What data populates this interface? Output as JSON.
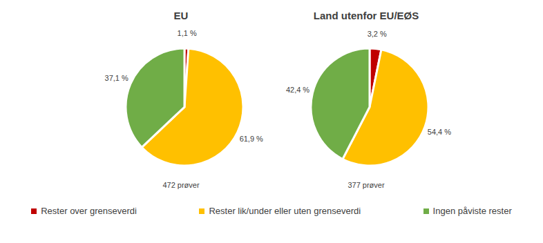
{
  "chart_data": [
    {
      "type": "pie",
      "title": "EU",
      "categories": [
        "Rester over grenseverdi",
        "Rester lik/under eller uten grenseverdi",
        "Ingen påviste rester"
      ],
      "values": [
        1.1,
        61.9,
        37.1
      ],
      "value_labels": [
        "1,1 %",
        "61,9 %",
        "37,1 %"
      ],
      "colors": [
        "#c00000",
        "#ffc000",
        "#70ad47"
      ],
      "data_labels": true,
      "annotation": "472 prøver",
      "legend": "bottom"
    },
    {
      "type": "pie",
      "title": "Land utenfor EU/EØS",
      "categories": [
        "Rester over grenseverdi",
        "Rester lik/under eller uten grenseverdi",
        "Ingen påviste rester"
      ],
      "values": [
        3.2,
        54.4,
        42.4
      ],
      "value_labels": [
        "3,2 %",
        "54,4 %",
        "42,4 %"
      ],
      "colors": [
        "#c00000",
        "#ffc000",
        "#70ad47"
      ],
      "data_labels": true,
      "annotation": "377 prøver",
      "legend": "bottom"
    }
  ]
}
